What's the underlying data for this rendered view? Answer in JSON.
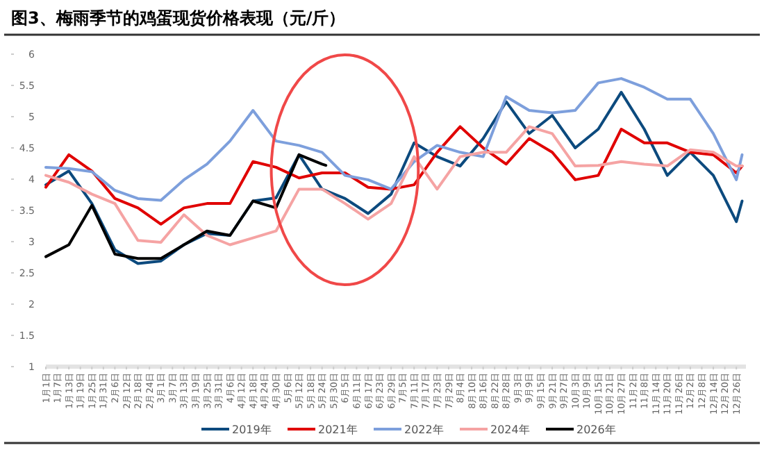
{
  "chart_data": {
    "type": "line",
    "title": "图3、梅雨季节的鸡蛋现货价格表现（元/斤）",
    "x": [
      "--01-01",
      "--01-13",
      "--01-25",
      "--02-06",
      "--02-18",
      "--03-01",
      "--03-13",
      "--03-25",
      "--04-06",
      "--04-18",
      "--04-30",
      "--05-12",
      "--05-24",
      "--06-05",
      "--06-17",
      "--06-29",
      "--07-11",
      "--07-23",
      "--08-04",
      "--08-16",
      "--08-28",
      "--09-09",
      "--09-21",
      "--10-03",
      "--10-15",
      "--10-27",
      "--11-08",
      "--11-20",
      "--12-02",
      "--12-14",
      "--12-26",
      "--12-29"
    ],
    "series": [
      {
        "name": "2019年",
        "color": "#0c4a7e",
        "values": [
          3.91,
          4.13,
          3.61,
          2.87,
          2.65,
          2.69,
          2.95,
          3.13,
          3.1,
          3.65,
          3.7,
          4.39,
          3.84,
          3.69,
          3.45,
          3.76,
          4.58,
          4.36,
          4.21,
          4.65,
          5.24,
          4.73,
          5.02,
          4.5,
          4.8,
          5.39,
          4.8,
          4.06,
          4.43,
          4.06,
          3.32,
          3.65
        ]
      },
      {
        "name": "2021年",
        "color": "#e00000",
        "values": [
          3.87,
          4.39,
          4.13,
          3.69,
          3.54,
          3.28,
          3.54,
          3.61,
          3.61,
          4.28,
          4.19,
          4.02,
          4.1,
          4.1,
          3.87,
          3.84,
          3.91,
          4.43,
          4.84,
          4.5,
          4.24,
          4.65,
          4.43,
          3.99,
          4.06,
          4.8,
          4.58,
          4.58,
          4.43,
          4.39,
          4.1,
          4.21
        ]
      },
      {
        "name": "2022年",
        "color": "#7d9fdc",
        "values": [
          4.19,
          4.17,
          4.12,
          3.82,
          3.69,
          3.66,
          3.99,
          4.24,
          4.61,
          5.1,
          4.61,
          4.54,
          4.43,
          4.06,
          3.99,
          3.84,
          4.28,
          4.54,
          4.43,
          4.36,
          5.32,
          5.1,
          5.06,
          5.1,
          5.54,
          5.61,
          5.47,
          5.28,
          5.28,
          4.73,
          3.99,
          4.39
        ]
      },
      {
        "name": "2024年",
        "color": "#f5a3a3",
        "values": [
          4.06,
          3.95,
          3.76,
          3.61,
          3.02,
          2.99,
          3.43,
          3.1,
          2.95,
          3.06,
          3.17,
          3.84,
          3.84,
          3.61,
          3.36,
          3.61,
          4.36,
          3.84,
          4.36,
          4.43,
          4.43,
          4.84,
          4.73,
          4.21,
          4.22,
          4.28,
          4.24,
          4.21,
          4.47,
          4.43,
          4.21,
          4.21
        ]
      },
      {
        "name": "2026年",
        "color": "#000000",
        "x": [
          "--01-01",
          "--01-13",
          "--01-25",
          "--02-06",
          "--02-18",
          "--03-01",
          "--03-13",
          "--03-25",
          "--04-06",
          "--04-18",
          "--04-30",
          "--05-12",
          "--05-24",
          "--05-26"
        ],
        "values": [
          2.76,
          2.95,
          3.58,
          2.8,
          2.73,
          2.73,
          2.95,
          3.17,
          3.1,
          3.65,
          3.54,
          4.39,
          4.24,
          4.22
        ]
      }
    ],
    "xlim": [
      "--01-01",
      "--12-31"
    ],
    "xticks": [
      {
        "value": "--01-01",
        "label": "1月1日"
      },
      {
        "value": "--01-07",
        "label": "1月7日"
      },
      {
        "value": "--01-13",
        "label": "1月13日"
      },
      {
        "value": "--01-19",
        "label": "1月19日"
      },
      {
        "value": "--01-25",
        "label": "1月25日"
      },
      {
        "value": "--01-31",
        "label": "1月31日"
      },
      {
        "value": "--02-06",
        "label": "2月6日"
      },
      {
        "value": "--02-12",
        "label": "2月12日"
      },
      {
        "value": "--02-18",
        "label": "2月18日"
      },
      {
        "value": "--02-24",
        "label": "2月24日"
      },
      {
        "value": "--03-01",
        "label": "3月1日"
      },
      {
        "value": "--03-07",
        "label": "3月7日"
      },
      {
        "value": "--03-13",
        "label": "3月13日"
      },
      {
        "value": "--03-19",
        "label": "3月19日"
      },
      {
        "value": "--03-25",
        "label": "3月25日"
      },
      {
        "value": "--03-31",
        "label": "3月31日"
      },
      {
        "value": "--04-06",
        "label": "4月6日"
      },
      {
        "value": "--04-12",
        "label": "4月12日"
      },
      {
        "value": "--04-18",
        "label": "4月18日"
      },
      {
        "value": "--04-24",
        "label": "4月24日"
      },
      {
        "value": "--04-30",
        "label": "4月30日"
      },
      {
        "value": "--05-06",
        "label": "5月6日"
      },
      {
        "value": "--05-12",
        "label": "5月12日"
      },
      {
        "value": "--05-18",
        "label": "5月18日"
      },
      {
        "value": "--05-24",
        "label": "5月24日"
      },
      {
        "value": "--05-30",
        "label": "5月30日"
      },
      {
        "value": "--06-05",
        "label": "6月5日"
      },
      {
        "value": "--06-11",
        "label": "6月11日"
      },
      {
        "value": "--06-17",
        "label": "6月17日"
      },
      {
        "value": "--06-23",
        "label": "6月23日"
      },
      {
        "value": "--06-29",
        "label": "6月29日"
      },
      {
        "value": "--07-05",
        "label": "7月5日"
      },
      {
        "value": "--07-11",
        "label": "7月11日"
      },
      {
        "value": "--07-17",
        "label": "7月17日"
      },
      {
        "value": "--07-23",
        "label": "7月23日"
      },
      {
        "value": "--07-29",
        "label": "7月29日"
      },
      {
        "value": "--08-04",
        "label": "8月4日"
      },
      {
        "value": "--08-10",
        "label": "8月10日"
      },
      {
        "value": "--08-16",
        "label": "8月16日"
      },
      {
        "value": "--08-22",
        "label": "8月22日"
      },
      {
        "value": "--08-28",
        "label": "8月28日"
      },
      {
        "value": "--09-03",
        "label": "9月3日"
      },
      {
        "value": "--09-09",
        "label": "9月9日"
      },
      {
        "value": "--09-15",
        "label": "9月15日"
      },
      {
        "value": "--09-21",
        "label": "9月21日"
      },
      {
        "value": "--09-27",
        "label": "9月27日"
      },
      {
        "value": "--10-03",
        "label": "10月3日"
      },
      {
        "value": "--10-09",
        "label": "10月9日"
      },
      {
        "value": "--10-15",
        "label": "10月15日"
      },
      {
        "value": "--10-21",
        "label": "10月21日"
      },
      {
        "value": "--10-27",
        "label": "10月27日"
      },
      {
        "value": "--11-02",
        "label": "11月2日"
      },
      {
        "value": "--11-08",
        "label": "11月8日"
      },
      {
        "value": "--11-14",
        "label": "11月14日"
      },
      {
        "value": "--11-20",
        "label": "11月20日"
      },
      {
        "value": "--11-26",
        "label": "11月26日"
      },
      {
        "value": "--12-02",
        "label": "12月2日"
      },
      {
        "value": "--12-08",
        "label": "12月8日"
      },
      {
        "value": "--12-14",
        "label": "12月14日"
      },
      {
        "value": "--12-20",
        "label": "12月20日"
      },
      {
        "value": "--12-26",
        "label": "12月26日"
      }
    ],
    "ylim": [
      1,
      6
    ],
    "yticks": [
      1,
      1.5,
      2,
      2.5,
      3,
      3.5,
      4,
      4.5,
      5,
      5.5,
      6
    ],
    "grid": false,
    "legend": "bottom",
    "marker": "none",
    "line_style": "solid"
  }
}
